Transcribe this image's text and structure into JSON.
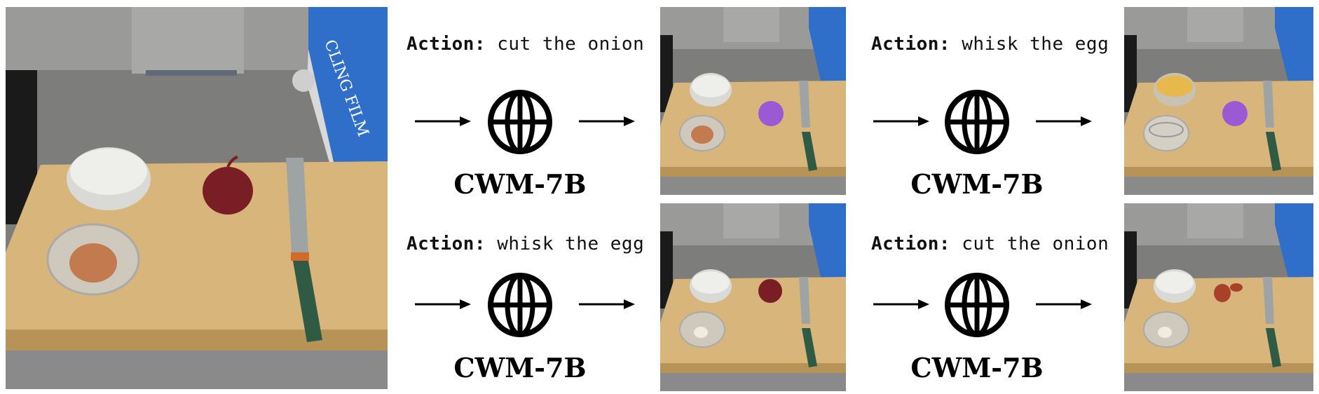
{
  "scene": {
    "left_photo": {
      "name": "initial-scene-photo"
    },
    "top_row": {
      "action_key": "Action:",
      "step1_action": "cut the onion",
      "step1_model": "CWM-7B",
      "step2_action": "whisk the egg",
      "step2_model": "CWM-7B"
    },
    "bottom_row": {
      "action_key": "Action:",
      "step1_action": "whisk the egg",
      "step1_model": "CWM-7B",
      "step2_action": "cut the onion",
      "step2_model": "CWM-7B"
    }
  },
  "icons": {
    "arrow": "right-arrow-icon",
    "model": "globe-icon"
  },
  "colors": {
    "counter": "#8a8a8a",
    "board": "#d8b57a",
    "onion": "#7a1e25",
    "knife_handle": "#2f5a44",
    "egg": "#c27a4e",
    "yolk": "#e7b94c",
    "purple_onion_cut": "#9b59d4",
    "box": "#2f6fc9"
  }
}
